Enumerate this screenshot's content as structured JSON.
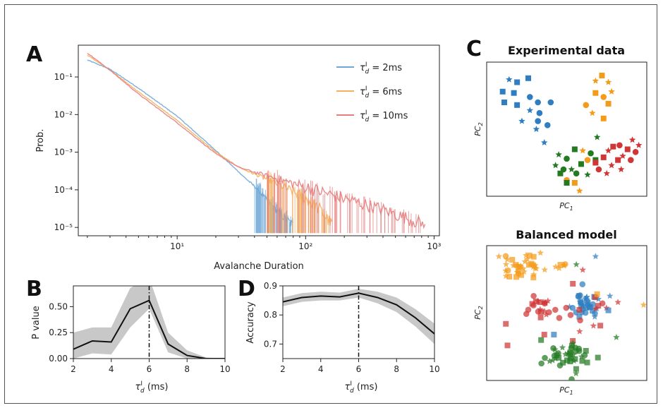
{
  "panels": {
    "A": {
      "letter": "A",
      "chart_data": {
        "type": "line",
        "xlabel": "Avalanche Duration",
        "ylabel": "Prob.",
        "xscale": "log",
        "yscale": "log",
        "xlim": [
          1.7,
          1100
        ],
        "ylim": [
          6e-06,
          0.7
        ],
        "x_ticks": [
          10,
          100,
          1000
        ],
        "x_tick_labels": [
          "10¹",
          "10²",
          "10³"
        ],
        "y_ticks": [
          1e-05,
          0.0001,
          0.001,
          0.01,
          0.1
        ],
        "y_tick_labels": [
          "10⁻⁵",
          "10⁻⁴",
          "10⁻³",
          "10⁻²",
          "10⁻¹"
        ],
        "legend_position": "top-right",
        "series": [
          {
            "name": "τᵈᴵ = 2ms",
            "label_main": "τ",
            "label_sub": "d",
            "label_sup": "I",
            "label_rest": " = 2ms",
            "color": "#6fa8d6",
            "x": [
              2,
              3,
              5,
              10,
              20,
              30,
              40,
              50,
              60,
              70,
              80
            ],
            "y": [
              0.28,
              0.16,
              0.05,
              0.009,
              0.0011,
              0.0003,
              0.00012,
              5e-05,
              2.5e-05,
              1.5e-05,
              1e-05
            ]
          },
          {
            "name": "τᵈᴵ = 6ms",
            "label_main": "τ",
            "label_sub": "d",
            "label_sup": "I",
            "label_rest": " = 6ms",
            "color": "#f5b05f",
            "x": [
              2,
              3,
              5,
              10,
              20,
              30,
              50,
              70,
              100,
              130,
              160
            ],
            "y": [
              0.38,
              0.15,
              0.04,
              0.007,
              0.001,
              0.0004,
              0.00018,
              0.0001,
              5e-05,
              2.5e-05,
              1e-05
            ]
          },
          {
            "name": "τᵈᴵ = 10ms",
            "label_main": "τ",
            "label_sub": "d",
            "label_sup": "I",
            "label_rest": " = 10ms",
            "color": "#e57f7f",
            "x": [
              2,
              3,
              5,
              10,
              20,
              30,
              50,
              100,
              200,
              400,
              850
            ],
            "y": [
              0.43,
              0.15,
              0.035,
              0.006,
              0.0009,
              0.0004,
              0.00022,
              0.0001,
              5e-05,
              2.5e-05,
              1e-05
            ]
          }
        ]
      }
    },
    "B": {
      "letter": "B",
      "chart_data": {
        "type": "line",
        "xlabel_main": "τ",
        "xlabel_sub": "d",
        "xlabel_sup": "I",
        "xlabel_rest": " (ms)",
        "ylabel": "P value",
        "xlim": [
          2,
          10
        ],
        "ylim": [
          0,
          0.7
        ],
        "x_ticks": [
          2,
          4,
          6,
          8,
          10
        ],
        "y_ticks": [
          0.0,
          0.25,
          0.5
        ],
        "y_tick_labels": [
          "0.00",
          "0.25",
          "0.50"
        ],
        "vline_x": 6,
        "series": [
          {
            "name": "",
            "color": "#111111",
            "x": [
              2,
              3,
              4,
              5,
              6,
              7,
              8,
              9,
              10
            ],
            "y": [
              0.09,
              0.17,
              0.16,
              0.48,
              0.56,
              0.14,
              0.03,
              0.0,
              0.0
            ],
            "y_low": [
              0.0,
              0.05,
              0.04,
              0.3,
              0.48,
              0.06,
              0.0,
              0.0,
              0.0
            ],
            "y_high": [
              0.25,
              0.3,
              0.3,
              0.68,
              0.78,
              0.25,
              0.08,
              0.01,
              0.0
            ]
          }
        ]
      }
    },
    "D": {
      "letter": "D",
      "chart_data": {
        "type": "line",
        "xlabel_main": "τ",
        "xlabel_sub": "d",
        "xlabel_sup": "I",
        "xlabel_rest": " (ms)",
        "ylabel": "Accuracy",
        "xlim": [
          2,
          10
        ],
        "ylim": [
          0.65,
          0.9
        ],
        "x_ticks": [
          2,
          4,
          6,
          8,
          10
        ],
        "y_ticks": [
          0.7,
          0.8,
          0.9
        ],
        "y_tick_labels": [
          "0.7",
          "0.8",
          "0.9"
        ],
        "vline_x": 6,
        "series": [
          {
            "name": "",
            "color": "#111111",
            "x": [
              2,
              3,
              4,
              5,
              6,
              7,
              8,
              9,
              10
            ],
            "y": [
              0.845,
              0.86,
              0.865,
              0.862,
              0.875,
              0.86,
              0.835,
              0.79,
              0.735
            ],
            "y_low": [
              0.83,
              0.845,
              0.85,
              0.85,
              0.86,
              0.84,
              0.81,
              0.76,
              0.7
            ],
            "y_high": [
              0.86,
              0.875,
              0.88,
              0.877,
              0.89,
              0.88,
              0.86,
              0.82,
              0.77
            ]
          }
        ]
      }
    },
    "C": {
      "letter": "C",
      "top": {
        "title": "Experimental data",
        "xlabel": "PC",
        "xlabel_sub": "1",
        "ylabel": "PC",
        "ylabel_sub": "2",
        "chart_data": {
          "type": "scatter",
          "points": [
            {
              "c": "blue",
              "m": "star",
              "x": 0.14,
              "y": 0.87
            },
            {
              "c": "blue",
              "m": "square",
              "x": 0.19,
              "y": 0.85
            },
            {
              "c": "blue",
              "m": "square",
              "x": 0.26,
              "y": 0.88
            },
            {
              "c": "blue",
              "m": "square",
              "x": 0.1,
              "y": 0.78
            },
            {
              "c": "blue",
              "m": "square",
              "x": 0.17,
              "y": 0.77
            },
            {
              "c": "blue",
              "m": "circle",
              "x": 0.27,
              "y": 0.74
            },
            {
              "c": "blue",
              "m": "square",
              "x": 0.11,
              "y": 0.7
            },
            {
              "c": "blue",
              "m": "square",
              "x": 0.19,
              "y": 0.68
            },
            {
              "c": "blue",
              "m": "circle",
              "x": 0.32,
              "y": 0.7
            },
            {
              "c": "blue",
              "m": "circle",
              "x": 0.4,
              "y": 0.7
            },
            {
              "c": "blue",
              "m": "star",
              "x": 0.27,
              "y": 0.64
            },
            {
              "c": "blue",
              "m": "circle",
              "x": 0.33,
              "y": 0.62
            },
            {
              "c": "blue",
              "m": "star",
              "x": 0.22,
              "y": 0.56
            },
            {
              "c": "blue",
              "m": "circle",
              "x": 0.32,
              "y": 0.56
            },
            {
              "c": "blue",
              "m": "circle",
              "x": 0.38,
              "y": 0.53
            },
            {
              "c": "blue",
              "m": "star",
              "x": 0.31,
              "y": 0.5
            },
            {
              "c": "blue",
              "m": "star",
              "x": 0.36,
              "y": 0.4
            },
            {
              "c": "orange",
              "m": "square",
              "x": 0.72,
              "y": 0.9
            },
            {
              "c": "orange",
              "m": "star",
              "x": 0.68,
              "y": 0.86
            },
            {
              "c": "orange",
              "m": "star",
              "x": 0.76,
              "y": 0.85
            },
            {
              "c": "orange",
              "m": "square",
              "x": 0.68,
              "y": 0.77
            },
            {
              "c": "orange",
              "m": "circle",
              "x": 0.73,
              "y": 0.74
            },
            {
              "c": "orange",
              "m": "star",
              "x": 0.78,
              "y": 0.78
            },
            {
              "c": "orange",
              "m": "circle",
              "x": 0.62,
              "y": 0.68
            },
            {
              "c": "orange",
              "m": "square",
              "x": 0.76,
              "y": 0.69
            },
            {
              "c": "orange",
              "m": "star",
              "x": 0.66,
              "y": 0.62
            },
            {
              "c": "orange",
              "m": "square",
              "x": 0.73,
              "y": 0.58
            },
            {
              "c": "orange",
              "m": "star",
              "x": 0.6,
              "y": 0.34
            },
            {
              "c": "orange",
              "m": "circle",
              "x": 0.63,
              "y": 0.27
            },
            {
              "c": "orange",
              "m": "circle",
              "x": 0.5,
              "y": 0.12
            },
            {
              "c": "orange",
              "m": "square",
              "x": 0.55,
              "y": 0.1
            },
            {
              "c": "orange",
              "m": "star",
              "x": 0.58,
              "y": 0.04
            },
            {
              "c": "green",
              "m": "star",
              "x": 0.69,
              "y": 0.44
            },
            {
              "c": "green",
              "m": "square",
              "x": 0.55,
              "y": 0.35
            },
            {
              "c": "green",
              "m": "circle",
              "x": 0.65,
              "y": 0.32
            },
            {
              "c": "green",
              "m": "star",
              "x": 0.45,
              "y": 0.31
            },
            {
              "c": "green",
              "m": "circle",
              "x": 0.5,
              "y": 0.28
            },
            {
              "c": "green",
              "m": "square",
              "x": 0.68,
              "y": 0.27
            },
            {
              "c": "green",
              "m": "square",
              "x": 0.59,
              "y": 0.24
            },
            {
              "c": "green",
              "m": "star",
              "x": 0.43,
              "y": 0.23
            },
            {
              "c": "green",
              "m": "circle",
              "x": 0.48,
              "y": 0.2
            },
            {
              "c": "green",
              "m": "star",
              "x": 0.53,
              "y": 0.2
            },
            {
              "c": "green",
              "m": "square",
              "x": 0.46,
              "y": 0.17
            },
            {
              "c": "green",
              "m": "circle",
              "x": 0.56,
              "y": 0.17
            },
            {
              "c": "green",
              "m": "star",
              "x": 0.63,
              "y": 0.16
            },
            {
              "c": "green",
              "m": "square",
              "x": 0.5,
              "y": 0.1
            },
            {
              "c": "red",
              "m": "star",
              "x": 0.91,
              "y": 0.42
            },
            {
              "c": "red",
              "m": "circle",
              "x": 0.83,
              "y": 0.38
            },
            {
              "c": "red",
              "m": "star",
              "x": 0.95,
              "y": 0.38
            },
            {
              "c": "red",
              "m": "square",
              "x": 0.79,
              "y": 0.37
            },
            {
              "c": "red",
              "m": "square",
              "x": 0.88,
              "y": 0.35
            },
            {
              "c": "red",
              "m": "star",
              "x": 0.76,
              "y": 0.34
            },
            {
              "c": "red",
              "m": "circle",
              "x": 0.93,
              "y": 0.33
            },
            {
              "c": "red",
              "m": "star",
              "x": 0.85,
              "y": 0.3
            },
            {
              "c": "red",
              "m": "square",
              "x": 0.73,
              "y": 0.29
            },
            {
              "c": "red",
              "m": "square",
              "x": 0.82,
              "y": 0.27
            },
            {
              "c": "red",
              "m": "circle",
              "x": 0.9,
              "y": 0.27
            },
            {
              "c": "red",
              "m": "square",
              "x": 0.68,
              "y": 0.25
            },
            {
              "c": "red",
              "m": "star",
              "x": 0.78,
              "y": 0.23
            },
            {
              "c": "red",
              "m": "circle",
              "x": 0.7,
              "y": 0.2
            },
            {
              "c": "red",
              "m": "star",
              "x": 0.84,
              "y": 0.2
            },
            {
              "c": "red",
              "m": "star",
              "x": 0.75,
              "y": 0.17
            }
          ]
        }
      },
      "bottom": {
        "title": "Balanced model",
        "xlabel": "PC",
        "xlabel_sub": "1",
        "ylabel": "PC",
        "ylabel_sub": "2",
        "chart_data": {
          "type": "scatter",
          "clusters": [
            {
              "c": "orange",
              "cx": 0.23,
              "cy": 0.83,
              "sx": 0.06,
              "sy": 0.05,
              "n": 38
            },
            {
              "c": "orange",
              "cx": 0.48,
              "cy": 0.86,
              "sx": 0.03,
              "sy": 0.04,
              "n": 6
            },
            {
              "c": "blue",
              "cx": 0.62,
              "cy": 0.55,
              "sx": 0.05,
              "sy": 0.05,
              "n": 34
            },
            {
              "c": "red",
              "cx": 0.34,
              "cy": 0.52,
              "sx": 0.06,
              "sy": 0.06,
              "n": 22
            },
            {
              "c": "red",
              "cx": 0.6,
              "cy": 0.48,
              "sx": 0.1,
              "sy": 0.1,
              "n": 14
            },
            {
              "c": "green",
              "cx": 0.52,
              "cy": 0.18,
              "sx": 0.07,
              "sy": 0.06,
              "n": 40
            }
          ],
          "points": [
            {
              "c": "red",
              "m": "star",
              "x": 0.6,
              "y": 0.82
            },
            {
              "c": "red",
              "m": "star",
              "x": 0.82,
              "y": 0.58
            },
            {
              "c": "orange",
              "m": "star",
              "x": 0.98,
              "y": 0.56
            },
            {
              "c": "red",
              "m": "square",
              "x": 0.12,
              "y": 0.42
            },
            {
              "c": "red",
              "m": "square",
              "x": 0.13,
              "y": 0.26
            },
            {
              "c": "red",
              "m": "square",
              "x": 0.36,
              "y": 0.34
            },
            {
              "c": "green",
              "m": "star",
              "x": 0.56,
              "y": 0.86
            },
            {
              "c": "green",
              "m": "star",
              "x": 0.81,
              "y": 0.32
            },
            {
              "c": "blue",
              "m": "star",
              "x": 0.68,
              "y": 0.92
            },
            {
              "c": "orange",
              "m": "square",
              "x": 0.69,
              "y": 0.64
            },
            {
              "c": "green",
              "m": "square",
              "x": 0.34,
              "y": 0.3
            },
            {
              "c": "green",
              "m": "square",
              "x": 0.62,
              "y": 0.22
            },
            {
              "c": "blue",
              "m": "square",
              "x": 0.42,
              "y": 0.34
            },
            {
              "c": "blue",
              "m": "square",
              "x": 0.76,
              "y": 0.52
            }
          ]
        }
      }
    }
  },
  "colors": {
    "blue": "#2f7ec1",
    "orange": "#f59b1a",
    "green": "#237a21",
    "red": "#d03636",
    "band": "#c8c8c8",
    "axis": "#222222"
  }
}
